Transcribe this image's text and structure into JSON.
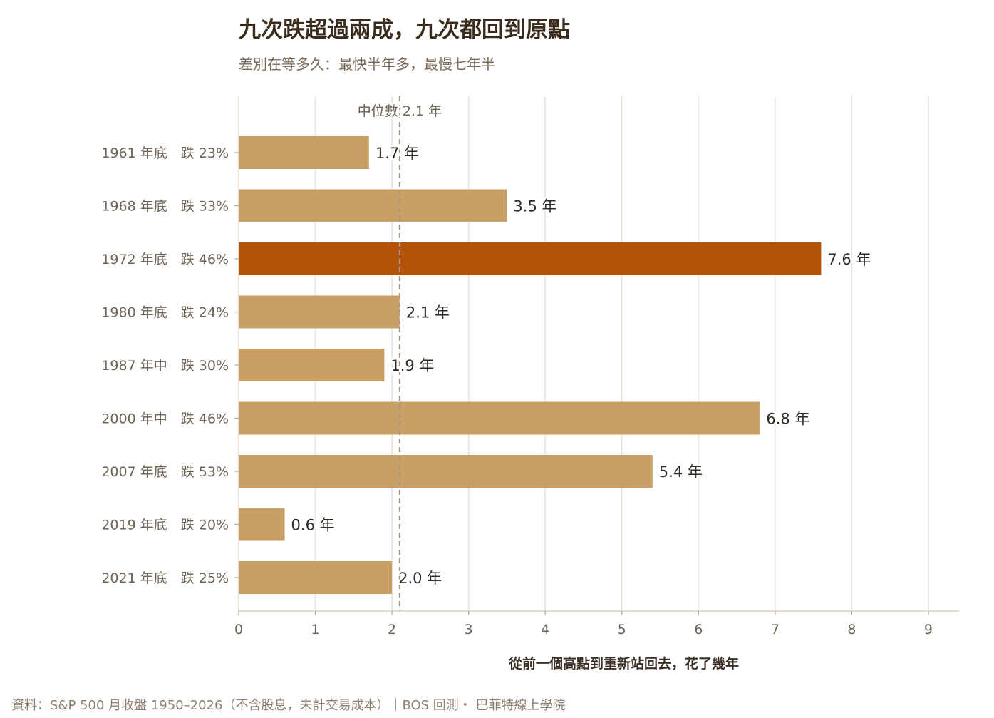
{
  "title": "九次跌超過兩成，九次都回到原點",
  "subtitle": "差別在等多久：最快半年多，最慢七年半",
  "source": "資料：S&P 500 月收盤 1950–2026（不含股息，未計交易成本）｜BOS 回測・ 巴菲特線上學院",
  "colors": {
    "bar": "#c8a066",
    "highlight": "#b35309",
    "grid": "#e9e4dc",
    "median_line": "#a89888",
    "label_text": "#6e6354",
    "value_text": "#2e2a24"
  },
  "chart_data": {
    "type": "bar",
    "orientation": "horizontal",
    "categories": [
      "1961 年底　跌 23%",
      "1968 年底　跌 33%",
      "1972 年底　跌 46%",
      "1980 年底　跌 24%",
      "1987 年中　跌 30%",
      "2000 年中　跌 46%",
      "2007 年底　跌 53%",
      "2019 年底　跌 20%",
      "2021 年底　跌 25%"
    ],
    "values": [
      1.7,
      3.5,
      7.6,
      2.1,
      1.9,
      6.8,
      5.4,
      0.6,
      2.0
    ],
    "value_labels": [
      "1.7 年",
      "3.5 年",
      "7.6 年",
      "2.1 年",
      "1.9 年",
      "6.8 年",
      "5.4 年",
      "0.6 年",
      "2.0 年"
    ],
    "highlight_index": 2,
    "xlim": [
      0,
      9.4
    ],
    "xticks": [
      0,
      1,
      2,
      3,
      4,
      5,
      6,
      7,
      8,
      9
    ],
    "xlabel": "從前一個高點到重新站回去，花了幾年",
    "ylabel": "",
    "grid": "vertical",
    "median": {
      "value": 2.1,
      "label": "中位數 2.1 年"
    }
  }
}
